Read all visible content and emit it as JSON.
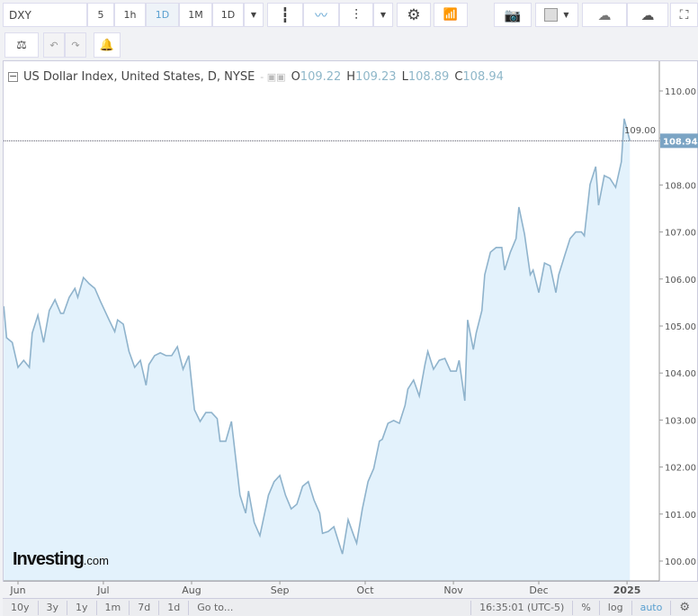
{
  "toolbar": {
    "symbol": "DXY",
    "intervals": [
      "5",
      "1h",
      "1D",
      "1M",
      "1D"
    ],
    "selected_interval": "1D",
    "icons": [
      "candles-icon",
      "line-chart-icon",
      "bars-icon",
      "gear-icon",
      "indicators-icon",
      "camera-icon",
      "color-swatch-icon",
      "cloud-download-icon",
      "cloud-upload-icon",
      "fullscreen-icon"
    ],
    "row2_icons": [
      "compare-scale-icon",
      "undo-icon",
      "redo-icon",
      "alert-add-icon"
    ]
  },
  "legend": {
    "title": "US Dollar Index, United States, D, NYSE",
    "o_label": "O",
    "o": "109.22",
    "h_label": "H",
    "h": "109.23",
    "l_label": "L",
    "l": "108.89",
    "c_label": "C",
    "c": "108.94"
  },
  "last_price": "108.94",
  "logo": {
    "main": "Investing",
    "suffix": ".com"
  },
  "bottom": {
    "ranges": [
      "10y",
      "3y",
      "1y",
      "1m",
      "7d",
      "1d"
    ],
    "goto": "Go to...",
    "time": "16:35:01 (UTC-5)",
    "percent": "%",
    "log": "log",
    "auto": "auto"
  },
  "colors": {
    "line": "#8fb3cc",
    "fill": "#e3f2fc",
    "accent": "#5aa0d0"
  },
  "chart_data": {
    "type": "area",
    "xticks": [
      {
        "date": "2024-06-01",
        "label": "Jun"
      },
      {
        "date": "2024-07-01",
        "label": "Jul"
      },
      {
        "date": "2024-08-01",
        "label": "Aug"
      },
      {
        "date": "2024-09-01",
        "label": "Sep"
      },
      {
        "date": "2024-10-01",
        "label": "Oct"
      },
      {
        "date": "2024-11-01",
        "label": "Nov"
      },
      {
        "date": "2024-12-01",
        "label": "Dec"
      },
      {
        "date": "2025-01-01",
        "label": "2025"
      }
    ],
    "yticks": [
      "100.00",
      "101.00",
      "102.00",
      "103.00",
      "104.00",
      "105.00",
      "106.00",
      "107.00",
      "108.00",
      "109.00",
      "110.00"
    ],
    "ylim": [
      99.55,
      110.6
    ],
    "dates": [
      "2024-05-27",
      "2024-05-28",
      "2024-05-30",
      "2024-06-01",
      "2024-06-03",
      "2024-06-05",
      "2024-06-06",
      "2024-06-08",
      "2024-06-10",
      "2024-06-12",
      "2024-06-14",
      "2024-06-16",
      "2024-06-17",
      "2024-06-19",
      "2024-06-21",
      "2024-06-22",
      "2024-06-24",
      "2024-06-26",
      "2024-06-28",
      "2024-06-30",
      "2024-07-03",
      "2024-07-05",
      "2024-07-06",
      "2024-07-08",
      "2024-07-10",
      "2024-07-12",
      "2024-07-14",
      "2024-07-16",
      "2024-07-17",
      "2024-07-19",
      "2024-07-21",
      "2024-07-23",
      "2024-07-25",
      "2024-07-27",
      "2024-07-29",
      "2024-07-31",
      "2024-08-02",
      "2024-08-04",
      "2024-08-06",
      "2024-08-08",
      "2024-08-10",
      "2024-08-11",
      "2024-08-13",
      "2024-08-15",
      "2024-08-16",
      "2024-08-18",
      "2024-08-20",
      "2024-08-21",
      "2024-08-23",
      "2024-08-25",
      "2024-08-27",
      "2024-08-28",
      "2024-08-30",
      "2024-09-01",
      "2024-09-03",
      "2024-09-05",
      "2024-09-07",
      "2024-09-09",
      "2024-09-11",
      "2024-09-13",
      "2024-09-15",
      "2024-09-16",
      "2024-09-18",
      "2024-09-20",
      "2024-09-22",
      "2024-09-23",
      "2024-09-25",
      "2024-09-27",
      "2024-09-28",
      "2024-09-30",
      "2024-10-02",
      "2024-10-04",
      "2024-10-06",
      "2024-10-07",
      "2024-10-09",
      "2024-10-11",
      "2024-10-13",
      "2024-10-15",
      "2024-10-16",
      "2024-10-18",
      "2024-10-20",
      "2024-10-22",
      "2024-10-23",
      "2024-10-25",
      "2024-10-27",
      "2024-10-29",
      "2024-10-31",
      "2024-11-02",
      "2024-11-03",
      "2024-11-05",
      "2024-11-06",
      "2024-11-08",
      "2024-11-09",
      "2024-11-11",
      "2024-11-12",
      "2024-11-14",
      "2024-11-16",
      "2024-11-18",
      "2024-11-19",
      "2024-11-21",
      "2024-11-23",
      "2024-11-24",
      "2024-11-26",
      "2024-11-28",
      "2024-11-29",
      "2024-12-01",
      "2024-12-03",
      "2024-12-05",
      "2024-12-07",
      "2024-12-08",
      "2024-12-10",
      "2024-12-12",
      "2024-12-14",
      "2024-12-16",
      "2024-12-17",
      "2024-12-19",
      "2024-12-21",
      "2024-12-22",
      "2024-12-24",
      "2024-12-26",
      "2024-12-28",
      "2024-12-30",
      "2024-12-31",
      "2025-01-02"
    ],
    "values": [
      105.42,
      104.75,
      104.65,
      104.12,
      104.27,
      104.12,
      104.85,
      105.23,
      104.65,
      105.33,
      105.56,
      105.27,
      105.27,
      105.61,
      105.8,
      105.61,
      106.03,
      105.9,
      105.8,
      105.52,
      105.13,
      104.88,
      105.13,
      105.04,
      104.46,
      104.12,
      104.27,
      103.74,
      104.18,
      104.37,
      104.43,
      104.37,
      104.37,
      104.56,
      104.08,
      104.37,
      103.22,
      102.97,
      103.16,
      103.16,
      103.03,
      102.55,
      102.55,
      102.97,
      102.45,
      101.4,
      101.02,
      101.49,
      100.82,
      100.54,
      101.11,
      101.4,
      101.69,
      101.82,
      101.4,
      101.11,
      101.21,
      101.59,
      101.69,
      101.3,
      101.02,
      100.59,
      100.63,
      100.73,
      100.34,
      100.15,
      100.88,
      100.54,
      100.38,
      101.11,
      101.69,
      101.97,
      102.55,
      102.59,
      102.93,
      102.99,
      102.93,
      103.31,
      103.66,
      103.85,
      103.51,
      104.18,
      104.46,
      104.08,
      104.27,
      104.31,
      104.04,
      104.04,
      104.27,
      103.41,
      105.13,
      104.5,
      104.85,
      105.33,
      106.09,
      106.57,
      106.67,
      106.67,
      106.19,
      106.57,
      106.86,
      107.53,
      106.95,
      106.09,
      106.19,
      105.71,
      106.34,
      106.28,
      105.71,
      106.09,
      106.48,
      106.86,
      107.0,
      107.0,
      106.92,
      108.01,
      108.39,
      107.57,
      108.2,
      108.14,
      107.95,
      108.49,
      109.41,
      108.94
    ]
  }
}
